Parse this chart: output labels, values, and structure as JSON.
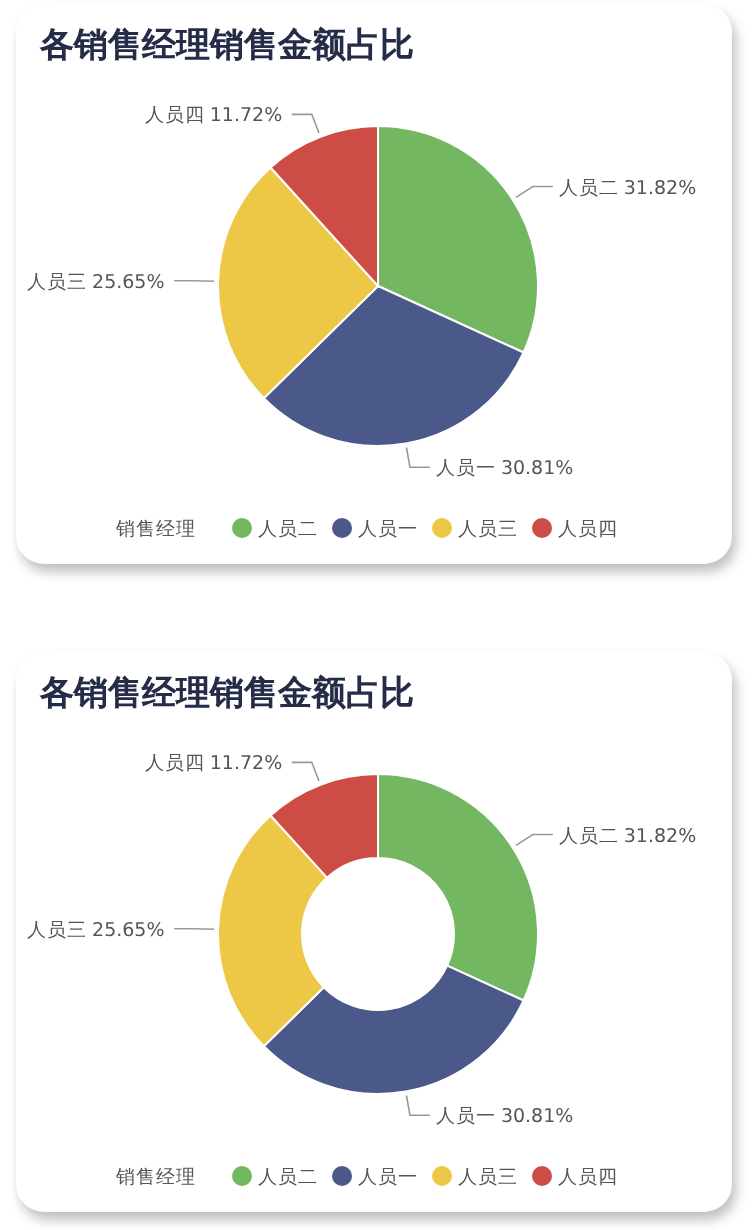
{
  "chart_data": [
    {
      "type": "pie",
      "title": "各销售经理销售金额占比",
      "legend_title": "销售经理",
      "legend": "bottom",
      "categories": [
        "人员二",
        "人员一",
        "人员三",
        "人员四"
      ],
      "values": [
        31.82,
        30.81,
        25.65,
        11.72
      ],
      "value_labels": [
        "31.82%",
        "30.81%",
        "25.65%",
        "11.72%"
      ],
      "colors": [
        "#73b761",
        "#4a588a",
        "#ecc846",
        "#cd4c46"
      ]
    },
    {
      "type": "donut",
      "title": "各销售经理销售金额占比",
      "legend_title": "销售经理",
      "legend": "bottom",
      "categories": [
        "人员二",
        "人员一",
        "人员三",
        "人员四"
      ],
      "values": [
        31.82,
        30.81,
        25.65,
        11.72
      ],
      "value_labels": [
        "31.82%",
        "30.81%",
        "25.65%",
        "11.72%"
      ],
      "colors": [
        "#73b761",
        "#4a588a",
        "#ecc846",
        "#cd4c46"
      ]
    }
  ]
}
